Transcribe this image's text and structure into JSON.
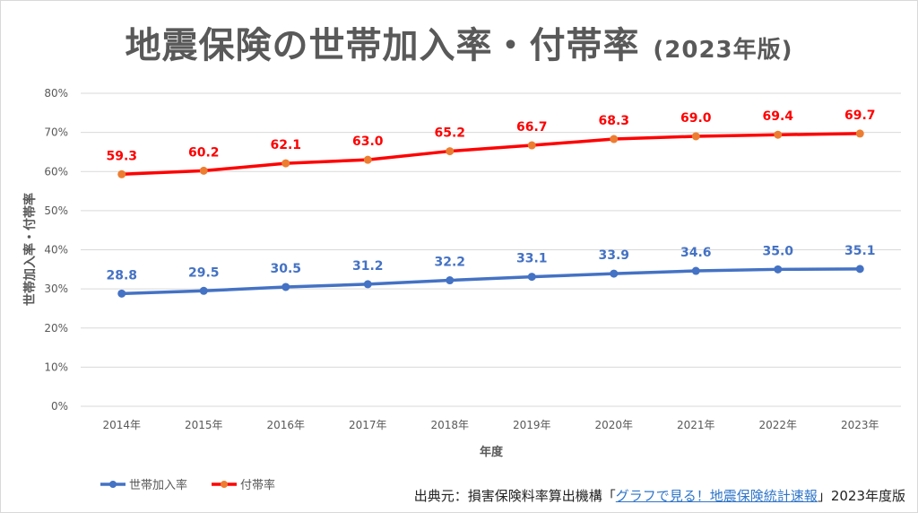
{
  "title": "地震保険の世帯加入率・付帯率",
  "title_suffix": "(2023年版)",
  "source": {
    "prefix": "出典元：損害保険料率算出機構「",
    "link": "グラフで見る！地震保険統計速報",
    "suffix": "」2023年度版"
  },
  "chart_data": {
    "type": "line",
    "title": "地震保険の世帯加入率・付帯率 (2023年版)",
    "xlabel": "年度",
    "ylabel": "世帯加入率・付帯率",
    "categories": [
      "2014年",
      "2015年",
      "2016年",
      "2017年",
      "2018年",
      "2019年",
      "2020年",
      "2021年",
      "2022年",
      "2023年"
    ],
    "yticks": [
      "0%",
      "10%",
      "20%",
      "30%",
      "40%",
      "50%",
      "60%",
      "70%",
      "80%"
    ],
    "ylim": [
      0,
      80
    ],
    "grid": true,
    "legend": "bottom-left",
    "series": [
      {
        "name": "世帯加入率",
        "color": "#4472C4",
        "marker_color": "#4472C4",
        "label_color": "#4472C4",
        "values": [
          28.8,
          29.5,
          30.5,
          31.2,
          32.2,
          33.1,
          33.9,
          34.6,
          35.0,
          35.1
        ]
      },
      {
        "name": "付帯率",
        "color": "#FF0000",
        "marker_color": "#ED7D31",
        "label_color": "#FF0000",
        "values": [
          59.3,
          60.2,
          62.1,
          63.0,
          65.2,
          66.7,
          68.3,
          69.0,
          69.4,
          69.7
        ]
      }
    ]
  }
}
